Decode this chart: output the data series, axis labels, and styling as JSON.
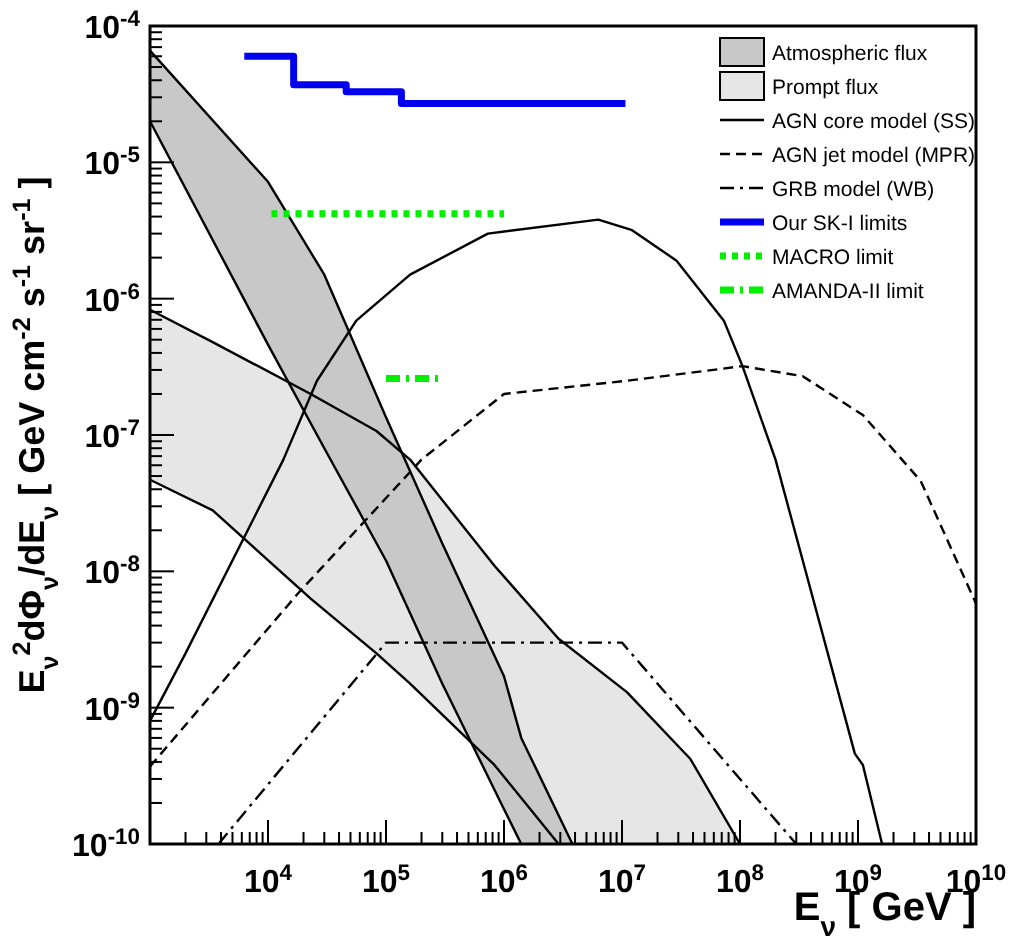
{
  "chart_data": {
    "type": "line",
    "xlabel": "E$_{ν}$  [ GeV ]",
    "ylabel": "E$_{ν}$$^{2}$dΦ$_{ν}$/dE$_{ν}$ [ GeV cm$^{-2}$ s$^{-1}$ sr$^{-1}$ ]",
    "log": "xy",
    "xlim": [
      1000,
      10000000000
    ],
    "ylim": [
      1e-10,
      0.0001
    ],
    "xticks": [
      {
        "value": 10000,
        "label": "10$^{4}$"
      },
      {
        "value": 100000,
        "label": "10$^{5}$"
      },
      {
        "value": 1000000,
        "label": "10$^{6}$"
      },
      {
        "value": 10000000,
        "label": "10$^{7}$"
      },
      {
        "value": 100000000,
        "label": "10$^{8}$"
      },
      {
        "value": 1000000000,
        "label": "10$^{9}$"
      },
      {
        "value": 10000000000,
        "label": "10$^{10}$"
      }
    ],
    "yticks": [
      {
        "value": 1e-10,
        "label": "10$^{-10}$"
      },
      {
        "value": 1e-09,
        "label": "10$^{-9}$"
      },
      {
        "value": 1e-08,
        "label": "10$^{-8}$"
      },
      {
        "value": 1e-07,
        "label": "10$^{-7}$"
      },
      {
        "value": 1e-06,
        "label": "10$^{-6}$"
      },
      {
        "value": 1e-05,
        "label": "10$^{-5}$"
      },
      {
        "value": 0.0001,
        "label": "10$^{-4}$"
      }
    ],
    "legend": "top right",
    "series": [
      {
        "name": "Atmospheric flux",
        "type": "area",
        "color": "#c8c8c8",
        "x": [
          1000,
          10000,
          30000,
          100000,
          300000,
          1000000,
          1400000,
          3800000
        ],
        "values": [
          null,
          null,
          null,
          null,
          null,
          null,
          null,
          null
        ],
        "lower": [
          2e-05,
          4.6e-07,
          8e-08,
          1.2e-08,
          1.5e-09,
          1.8e-10,
          1e-10,
          1e-10
        ],
        "upper": [
          6.6e-05,
          7.2e-06,
          1.5e-06,
          1.35e-07,
          1.6e-08,
          1.7e-09,
          6e-10,
          1e-10
        ]
      },
      {
        "name": "Prompt flux",
        "type": "area",
        "color": "#e6e6e6",
        "x": [
          1000,
          3400,
          23000,
          83000,
          160000,
          830000,
          2900000,
          11000000,
          38000000,
          100000000
        ],
        "values": [
          null,
          null,
          null,
          null,
          null,
          null,
          null,
          null,
          null,
          null
        ],
        "lower": [
          4.7e-08,
          2.8e-08,
          6.3e-09,
          2.5e-09,
          1.5e-09,
          3.8e-10,
          1e-10,
          1e-10,
          1e-10,
          1e-10
        ],
        "upper": [
          8.3e-07,
          4.8e-07,
          2e-07,
          1.07e-07,
          6.6e-08,
          1.1e-08,
          3.2e-09,
          1.3e-09,
          4.2e-10,
          1e-10
        ]
      },
      {
        "type": "line",
        "color": "#000000",
        "line_style": "solid",
        "x": [
          1000,
          10000,
          30000,
          100000,
          300000,
          1000000,
          1400000,
          3800000
        ],
        "values": [
          6.6e-05,
          7.2e-06,
          1.5e-06,
          1.35e-07,
          1.6e-08,
          1.7e-09,
          6e-10,
          1e-10
        ]
      },
      {
        "type": "line",
        "color": "#000000",
        "line_style": "solid",
        "x": [
          1000,
          3400,
          23000,
          83000,
          160000,
          830000,
          2900000,
          11000000,
          38000000,
          100000000
        ],
        "values": [
          8.3e-07,
          4.8e-07,
          2e-07,
          1.07e-07,
          6.6e-08,
          1.1e-08,
          3.2e-09,
          1.3e-09,
          4.2e-10,
          1e-10
        ]
      },
      {
        "type": "line",
        "color": "#000000",
        "line_style": "solid",
        "x": [
          1000,
          10000,
          30000,
          100000,
          300000,
          1000000,
          1400000
        ],
        "values": [
          2e-05,
          4.6e-07,
          8e-08,
          1.2e-08,
          1.5e-09,
          1.8e-10,
          1e-10
        ]
      },
      {
        "type": "line",
        "color": "#000000",
        "line_style": "solid",
        "x": [
          1000,
          3400,
          23000,
          83000,
          160000,
          830000,
          2900000
        ],
        "values": [
          4.7e-08,
          2.8e-08,
          6.3e-09,
          2.5e-09,
          1.5e-09,
          3.8e-10,
          1e-10
        ]
      },
      {
        "name": "AGN core model (SS)",
        "type": "line",
        "color": "#000000",
        "line_style": "solid",
        "x": [
          1000,
          2000,
          13500,
          26000,
          56000,
          160000,
          730000,
          6300000,
          12000000,
          29000000,
          73000000,
          105000000,
          200000000,
          940000000,
          1100000000,
          1600000000
        ],
        "values": [
          8e-10,
          2.5e-09,
          6.6e-08,
          2.5e-07,
          6.9e-07,
          1.5e-06,
          3e-06,
          3.8e-06,
          3.2e-06,
          1.9e-06,
          6.9e-07,
          3.2e-07,
          6.6e-08,
          4.6e-10,
          3.8e-10,
          1e-10
        ]
      },
      {
        "name": "AGN jet model (MPR)",
        "type": "line",
        "color": "#000000",
        "line_style": "dashed",
        "x": [
          1000,
          18000,
          200000,
          1000000,
          11000000,
          105000000,
          340000000,
          1100000000,
          3400000000,
          10000000000
        ],
        "values": [
          3.7e-10,
          6.9e-09,
          6.6e-08,
          2e-07,
          2.5e-07,
          3.2e-07,
          2.7e-07,
          1.4e-07,
          4.6e-08,
          5.8e-09
        ]
      },
      {
        "name": "GRB model (WB)",
        "type": "line",
        "color": "#000000",
        "line_style": "dashdot",
        "x": [
          3800,
          100000,
          10000000,
          300000000
        ],
        "values": [
          1e-10,
          3e-09,
          3e-09,
          1e-10
        ]
      },
      {
        "name": "Our SK-I limits",
        "type": "step",
        "color": "#0000ee",
        "line_style": "solid",
        "x": [
          6300,
          16500,
          46000,
          135000,
          10700000
        ],
        "values": [
          6e-05,
          3.7e-05,
          3.3e-05,
          2.7e-05,
          2.7e-05
        ]
      },
      {
        "name": "MACRO limit",
        "type": "line",
        "color": "#00ee00",
        "line_style": "dotted",
        "x": [
          10700,
          1000000
        ],
        "values": [
          4.2e-06,
          4.2e-06
        ]
      },
      {
        "name": "AMANDA-II limit",
        "color": "#00ee00",
        "line_style": "dashdot",
        "x": [
          100000,
          300000
        ],
        "values": [
          2.6e-07,
          2.6e-07
        ]
      }
    ]
  }
}
